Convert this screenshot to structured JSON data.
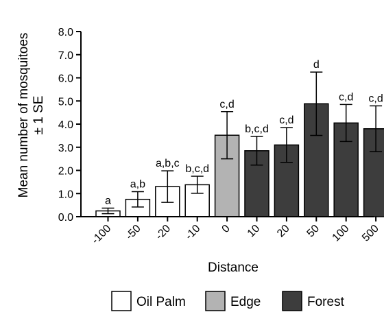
{
  "chart_data": {
    "type": "bar",
    "xlabel": "Distance",
    "ylabel": "Mean number of mosquitoes",
    "ylabel_line2": "± 1 SE",
    "ylim": [
      0,
      8
    ],
    "yticks": [
      "0.0",
      "1.0",
      "2.0",
      "3.0",
      "4.0",
      "5.0",
      "6.0",
      "7.0",
      "8.0"
    ],
    "categories": [
      "-100",
      "-50",
      "-20",
      "-10",
      "0",
      "10",
      "20",
      "50",
      "100",
      "500"
    ],
    "values": [
      0.25,
      0.75,
      1.3,
      1.38,
      3.52,
      2.85,
      3.1,
      4.88,
      4.05,
      3.8
    ],
    "errors": [
      0.12,
      0.33,
      0.68,
      0.37,
      1.02,
      0.62,
      0.75,
      1.37,
      0.8,
      0.99
    ],
    "sig_labels": [
      "a",
      "a,b",
      "a,b,c",
      "b,c,d",
      "c,d",
      "b,c,d",
      "c,d",
      "d",
      "c,d",
      "c,d"
    ],
    "groups": [
      "Oil Palm",
      "Oil Palm",
      "Oil Palm",
      "Oil Palm",
      "Edge",
      "Forest",
      "Forest",
      "Forest",
      "Forest",
      "Forest"
    ],
    "legend": [
      {
        "name": "Oil Palm",
        "color": "#ffffff"
      },
      {
        "name": "Edge",
        "color": "#b3b3b3"
      },
      {
        "name": "Forest",
        "color": "#3d3d3d"
      }
    ],
    "legend_position": "bottom"
  }
}
